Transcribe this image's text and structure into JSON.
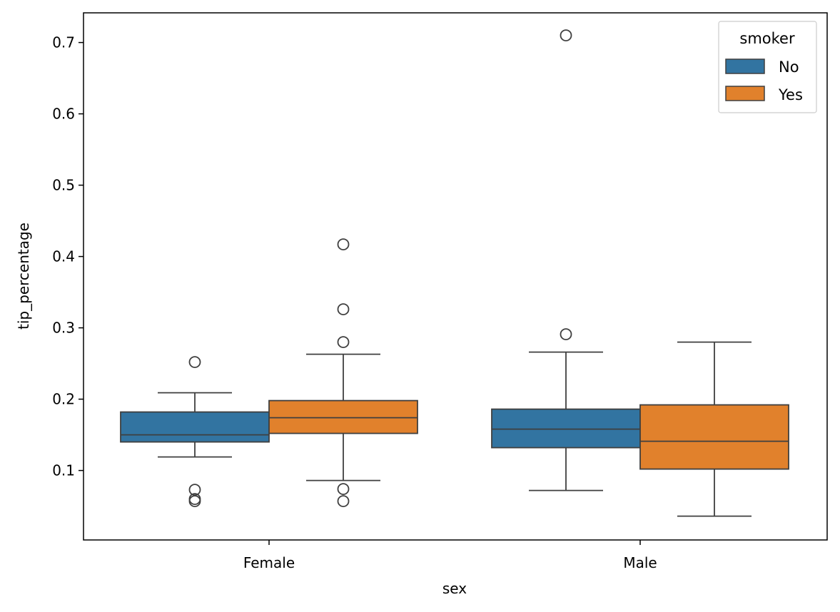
{
  "chart_data": {
    "type": "box",
    "title": "",
    "xlabel": "sex",
    "ylabel": "tip_percentage",
    "categories": [
      "Female",
      "Male"
    ],
    "ylim": [
      0.0,
      0.745
    ],
    "yticks": [
      "0.1",
      "0.2",
      "0.3",
      "0.4",
      "0.5",
      "0.6",
      "0.7"
    ],
    "grid": false,
    "legend": {
      "title": "smoker",
      "position": "top-right",
      "entries": [
        {
          "name": "No",
          "color": "#3274a1"
        },
        {
          "name": "Yes",
          "color": "#e1812c"
        }
      ]
    },
    "series": [
      {
        "name": "No",
        "color": "#3274a1",
        "boxes": [
          {
            "category": "Female",
            "whisker_low": 0.119,
            "q1": 0.14,
            "median": 0.15,
            "q3": 0.182,
            "whisker_high": 0.209,
            "outliers": [
              0.252,
              0.073,
              0.06,
              0.057
            ]
          },
          {
            "category": "Male",
            "whisker_low": 0.072,
            "q1": 0.132,
            "median": 0.158,
            "q3": 0.186,
            "whisker_high": 0.266,
            "outliers": [
              0.291,
              0.71
            ]
          }
        ]
      },
      {
        "name": "Yes",
        "color": "#e1812c",
        "boxes": [
          {
            "category": "Female",
            "whisker_low": 0.086,
            "q1": 0.152,
            "median": 0.174,
            "q3": 0.198,
            "whisker_high": 0.263,
            "outliers": [
              0.417,
              0.326,
              0.28,
              0.074,
              0.057
            ]
          },
          {
            "category": "Male",
            "whisker_low": 0.036,
            "q1": 0.102,
            "median": 0.141,
            "q3": 0.192,
            "whisker_high": 0.28,
            "outliers": []
          }
        ]
      }
    ]
  }
}
